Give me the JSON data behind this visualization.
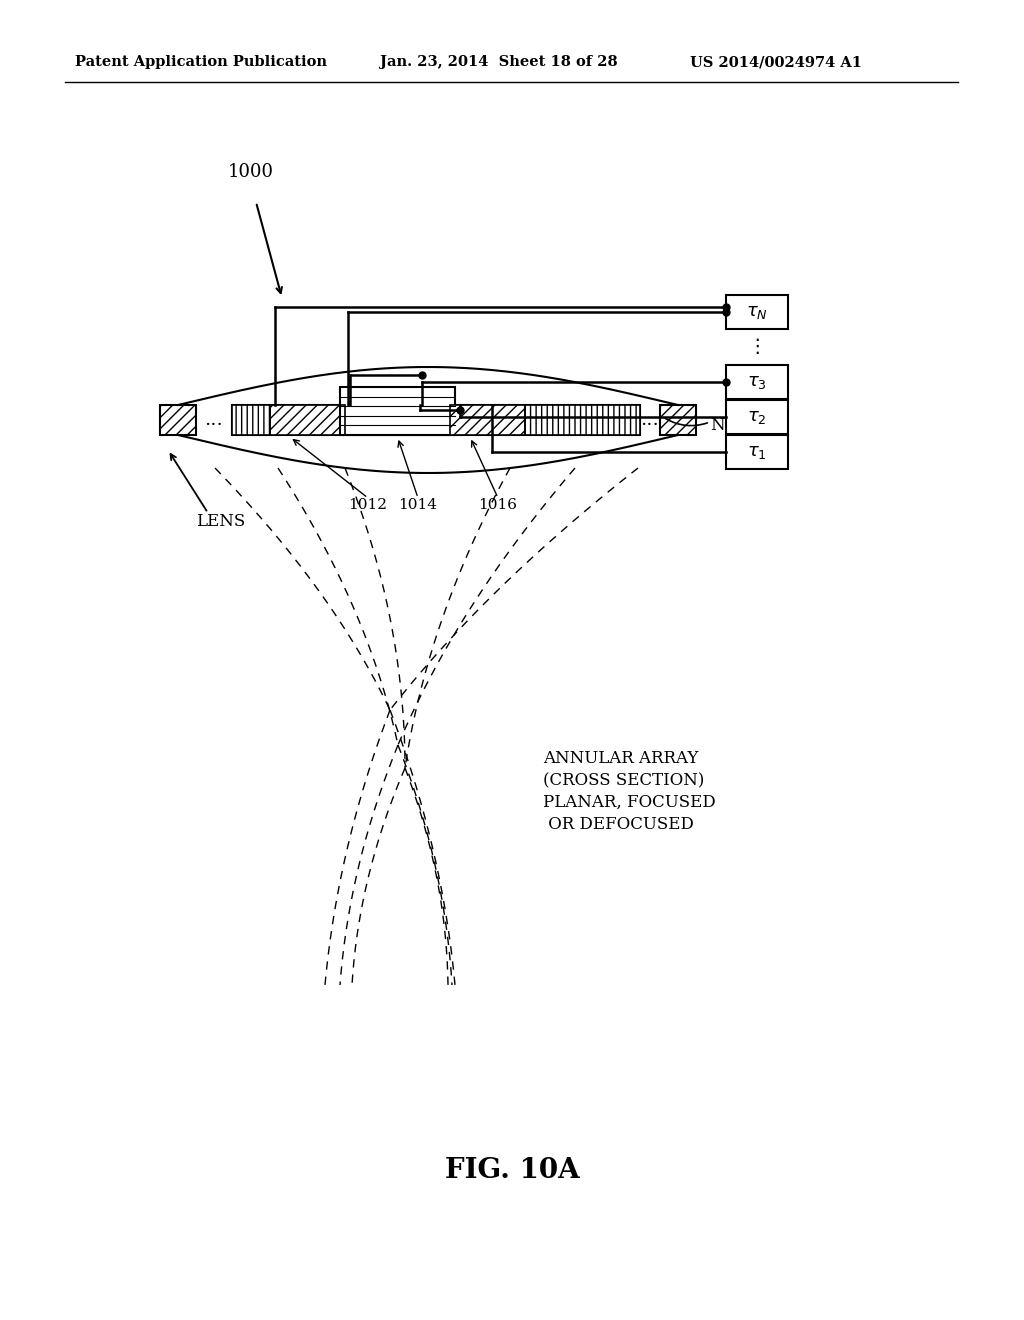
{
  "bg_color": "#ffffff",
  "header_left": "Patent Application Publication",
  "header_mid": "Jan. 23, 2014  Sheet 18 of 28",
  "header_right": "US 2014/0024974 A1",
  "fig_label": "FIG. 10A",
  "label_1000": "1000",
  "label_lens": "LENS",
  "label_1012": "1012",
  "label_1014": "1014",
  "label_1016": "1016",
  "label_N": "N",
  "annotation_line1": "ANNULAR ARRAY",
  "annotation_line2": "(CROSS SECTION)",
  "annotation_line3": "PLANAR, FOCUSED",
  "annotation_line4": " OR DEFOCUSED",
  "tau_N": "$\\tau_N$",
  "tau_3": "$\\tau_3$",
  "tau_2": "$\\tau_2$",
  "tau_1": "$\\tau_1$",
  "dots_label": "⋮"
}
